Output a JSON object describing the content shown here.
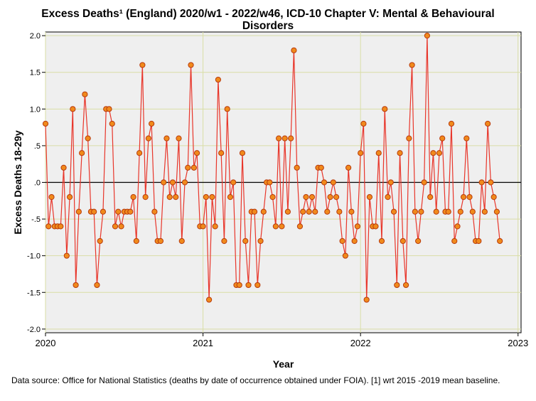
{
  "chart_data": {
    "type": "line",
    "title_line1": "Excess Deaths¹ (England) 2020/w1 - 2022/w46, ICD-10 Chapter V: Mental & Behavioural",
    "title_line2": "Disorders",
    "xlabel": "Year",
    "ylabel": "Excess Deaths 18-29y",
    "xlim": [
      0,
      157
    ],
    "ylim": [
      -2.05,
      2.05
    ],
    "x_ticks": [
      {
        "label": "2020",
        "week": 0
      },
      {
        "label": "2021",
        "week": 52
      },
      {
        "label": "2022",
        "week": 104
      },
      {
        "label": "2023",
        "week": 156
      }
    ],
    "y_ticks": [
      {
        "label": "2.0",
        "value": 2.0
      },
      {
        "label": "1.5",
        "value": 1.5
      },
      {
        "label": "1.0",
        "value": 1.0
      },
      {
        "label": ".5",
        "value": 0.5
      },
      {
        "label": ".0",
        "value": 0.0
      },
      {
        "label": "-.5",
        "value": -0.5
      },
      {
        "label": "-1.0",
        "value": -1.0
      },
      {
        "label": "-1.5",
        "value": -1.5
      },
      {
        "label": "-2.0",
        "value": -2.0
      }
    ],
    "reference_line": 0,
    "series": [
      {
        "name": "Excess Deaths 18-29y",
        "values": [
          0.8,
          -0.6,
          -0.2,
          -0.6,
          -0.6,
          -0.6,
          0.2,
          -1.0,
          -0.2,
          1.0,
          -1.4,
          -0.4,
          0.4,
          1.2,
          0.6,
          -0.4,
          -0.4,
          -1.4,
          -0.8,
          -0.4,
          1.0,
          1.0,
          0.8,
          -0.6,
          -0.4,
          -0.6,
          -0.4,
          -0.4,
          -0.4,
          -0.2,
          -0.8,
          0.4,
          1.6,
          -0.2,
          0.6,
          0.8,
          -0.4,
          -0.8,
          -0.8,
          0.0,
          0.6,
          -0.2,
          0.0,
          -0.2,
          0.6,
          -0.8,
          0.0,
          0.2,
          1.6,
          0.2,
          0.4,
          -0.6,
          -0.6,
          -0.2,
          -1.6,
          -0.2,
          -0.6,
          1.4,
          0.4,
          -0.8,
          1.0,
          -0.2,
          0.0,
          -1.4,
          -1.4,
          0.4,
          -0.8,
          -1.4,
          -0.4,
          -0.4,
          -1.4,
          -0.8,
          -0.4,
          0.0,
          0.0,
          -0.2,
          -0.6,
          0.6,
          -0.6,
          0.6,
          -0.4,
          0.6,
          1.8,
          0.2,
          -0.6,
          -0.4,
          -0.2,
          -0.4,
          -0.2,
          -0.4,
          0.2,
          0.2,
          0.0,
          -0.4,
          -0.2,
          0.0,
          -0.2,
          -0.4,
          -0.8,
          -1.0,
          0.2,
          -0.4,
          -0.8,
          -0.6,
          0.4,
          0.8,
          -1.6,
          -0.2,
          -0.6,
          -0.6,
          0.4,
          -0.8,
          1.0,
          -0.2,
          0.0,
          -0.4,
          -1.4,
          0.4,
          -0.8,
          -1.4,
          0.6,
          1.6,
          -0.4,
          -0.8,
          -0.4,
          0.0,
          2.0,
          -0.2,
          0.4,
          -0.4,
          0.4,
          0.6,
          -0.4,
          -0.4,
          0.8,
          -0.8,
          -0.6,
          -0.4,
          -0.2,
          0.6,
          -0.2,
          -0.4,
          -0.8,
          -0.8,
          0.0,
          -0.4,
          0.8,
          0.0,
          -0.2,
          -0.4,
          -0.8
        ]
      }
    ],
    "grid": true
  },
  "footnote": "Data source: Office for National Statistics (deaths by date of occurrence obtained under FOIA). [1] wrt 2015 -2019 mean baseline.",
  "colors": {
    "plot_background": "#efefef",
    "grid": "#d9dea6",
    "line": "#e8352a",
    "marker_fill": "#f08a1c",
    "marker_edge": "#b83a0c",
    "reference": "#000000"
  }
}
